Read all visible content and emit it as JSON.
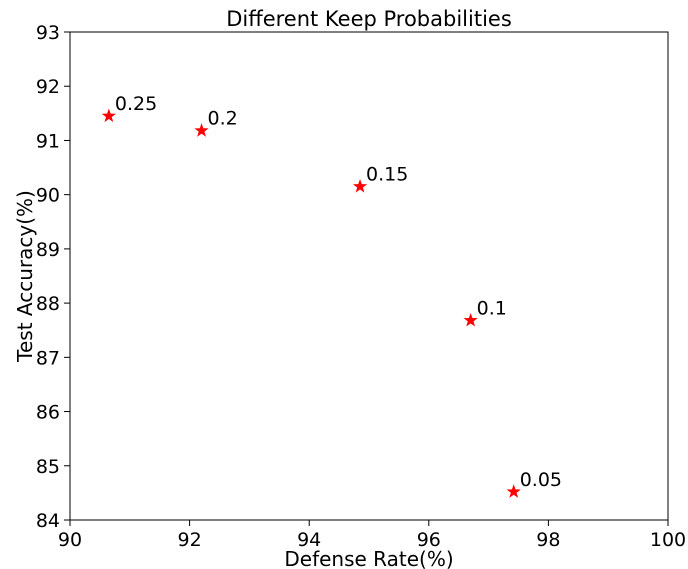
{
  "chart_data": {
    "type": "scatter",
    "title": "Different Keep Probabilities",
    "xlabel": "Defense Rate(%)",
    "ylabel": "Test Accuracy(%)",
    "xlim": [
      90,
      100
    ],
    "ylim": [
      84,
      93
    ],
    "xticks": [
      "90",
      "92",
      "94",
      "96",
      "98",
      "100"
    ],
    "yticks": [
      "84",
      "85",
      "86",
      "87",
      "88",
      "89",
      "90",
      "91",
      "92",
      "93"
    ],
    "grid": false,
    "marker": "star",
    "marker_color": "#ff0000",
    "points": [
      {
        "x": 90.65,
        "y": 91.45,
        "label": "0.25"
      },
      {
        "x": 92.2,
        "y": 91.18,
        "label": "0.2"
      },
      {
        "x": 94.85,
        "y": 90.15,
        "label": "0.15"
      },
      {
        "x": 96.7,
        "y": 87.68,
        "label": "0.1"
      },
      {
        "x": 97.42,
        "y": 84.52,
        "label": "0.05"
      }
    ]
  }
}
